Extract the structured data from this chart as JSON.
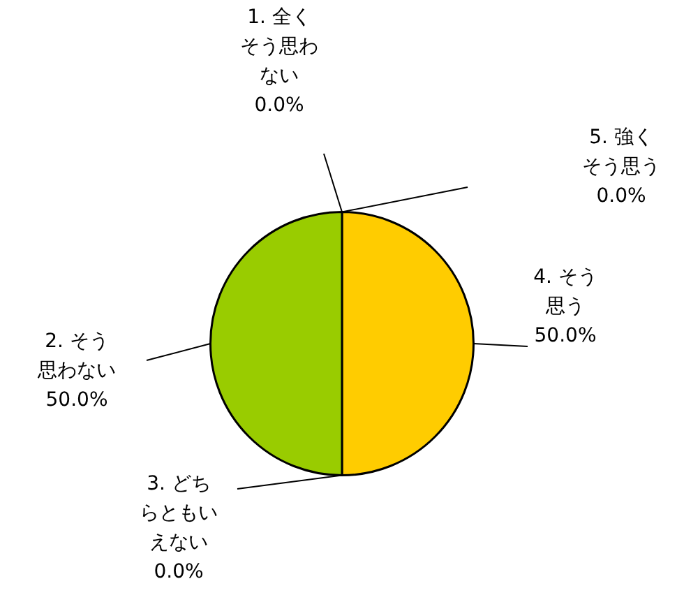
{
  "chart_data": {
    "type": "pie",
    "categories": [
      "1. 全くそう思わない",
      "2. そう思わない",
      "3. どちらともいえない",
      "4. そう思う",
      "5. 強くそう思う"
    ],
    "values": [
      0,
      50,
      0,
      50,
      0
    ],
    "colors": [
      "#3366cc",
      "#99cc00",
      "#ff6600",
      "#ffcc00",
      "#cc3333"
    ],
    "value_labels": [
      "0.0%",
      "50.0%",
      "0.0%",
      "50.0%",
      "0.0%"
    ]
  }
}
